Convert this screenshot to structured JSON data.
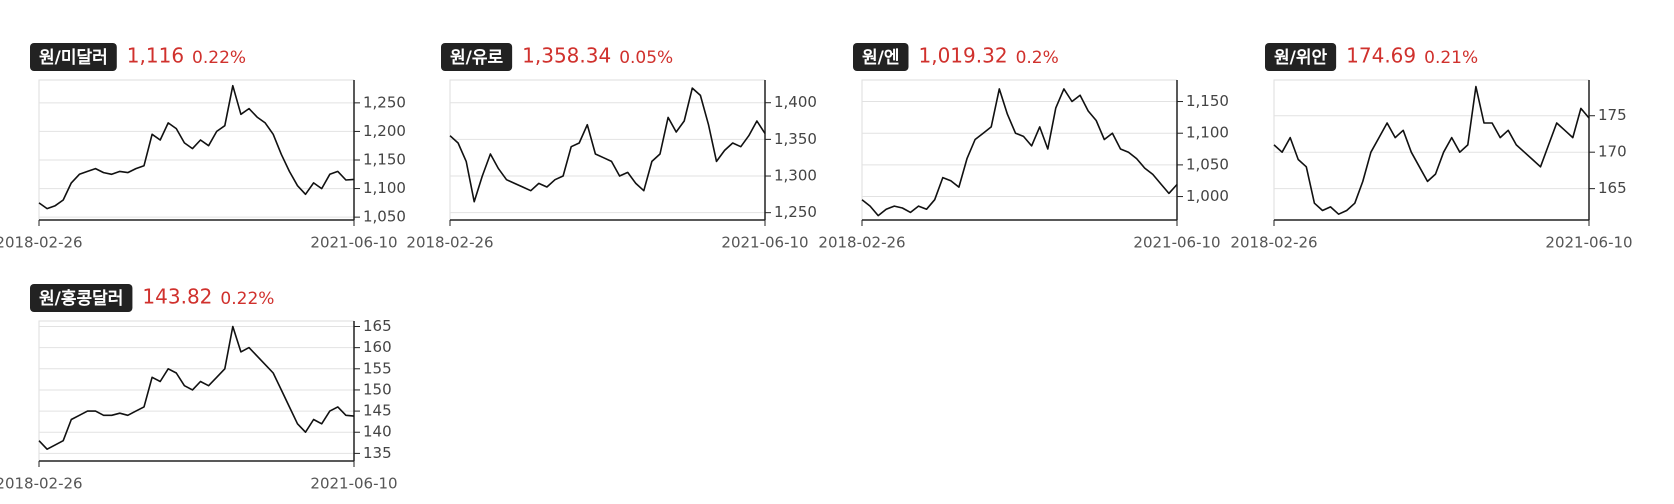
{
  "chart_data": [
    {
      "type": "line",
      "title": "원/미달러",
      "price": "1,116",
      "change": "0.22%",
      "color": "#111111",
      "grid": true,
      "categories": [
        "2018-02-26",
        null,
        null,
        null,
        null,
        null,
        null,
        null,
        null,
        null,
        null,
        null,
        null,
        null,
        null,
        null,
        null,
        null,
        null,
        null,
        null,
        null,
        null,
        null,
        null,
        null,
        null,
        null,
        null,
        null,
        null,
        null,
        null,
        null,
        null,
        null,
        null,
        null,
        null,
        "2021-06-10"
      ],
      "values": [
        1075,
        1065,
        1070,
        1080,
        1110,
        1125,
        1130,
        1135,
        1128,
        1125,
        1130,
        1128,
        1135,
        1140,
        1195,
        1185,
        1215,
        1205,
        1180,
        1170,
        1185,
        1175,
        1200,
        1210,
        1280,
        1230,
        1240,
        1225,
        1215,
        1195,
        1160,
        1130,
        1105,
        1090,
        1110,
        1100,
        1125,
        1130,
        1115,
        1116
      ],
      "ylim": [
        1045,
        1290
      ],
      "yticks": [
        {
          "value": 1050,
          "label": "1,050"
        },
        {
          "value": 1100,
          "label": "1,100"
        },
        {
          "value": 1150,
          "label": "1,150"
        },
        {
          "value": 1200,
          "label": "1,200"
        },
        {
          "value": 1250,
          "label": "1,250"
        }
      ]
    },
    {
      "type": "line",
      "title": "원/유로",
      "price": "1,358.34",
      "change": "0.05%",
      "color": "#111111",
      "grid": true,
      "categories": [
        "2018-02-26",
        null,
        null,
        null,
        null,
        null,
        null,
        null,
        null,
        null,
        null,
        null,
        null,
        null,
        null,
        null,
        null,
        null,
        null,
        null,
        null,
        null,
        null,
        null,
        null,
        null,
        null,
        null,
        null,
        null,
        null,
        null,
        null,
        null,
        null,
        null,
        null,
        null,
        null,
        "2021-06-10"
      ],
      "values": [
        1355,
        1345,
        1320,
        1265,
        1300,
        1330,
        1310,
        1295,
        1290,
        1285,
        1280,
        1290,
        1285,
        1295,
        1300,
        1340,
        1345,
        1370,
        1330,
        1325,
        1320,
        1300,
        1305,
        1290,
        1280,
        1320,
        1330,
        1380,
        1360,
        1375,
        1420,
        1410,
        1370,
        1320,
        1335,
        1345,
        1340,
        1355,
        1375,
        1358
      ],
      "ylim": [
        1240,
        1431
      ],
      "yticks": [
        {
          "value": 1250,
          "label": "1,250"
        },
        {
          "value": 1300,
          "label": "1,300"
        },
        {
          "value": 1350,
          "label": "1,350"
        },
        {
          "value": 1400,
          "label": "1,400"
        }
      ]
    },
    {
      "type": "line",
      "title": "원/엔",
      "price": "1,019.32",
      "change": "0.2%",
      "color": "#111111",
      "grid": true,
      "categories": [
        "2018-02-26",
        null,
        null,
        null,
        null,
        null,
        null,
        null,
        null,
        null,
        null,
        null,
        null,
        null,
        null,
        null,
        null,
        null,
        null,
        null,
        null,
        null,
        null,
        null,
        null,
        null,
        null,
        null,
        null,
        null,
        null,
        null,
        null,
        null,
        null,
        null,
        null,
        null,
        null,
        "2021-06-10"
      ],
      "values": [
        995,
        985,
        970,
        980,
        985,
        982,
        975,
        985,
        980,
        995,
        1030,
        1025,
        1015,
        1060,
        1090,
        1100,
        1110,
        1170,
        1130,
        1100,
        1095,
        1080,
        1110,
        1075,
        1140,
        1170,
        1150,
        1160,
        1135,
        1120,
        1090,
        1100,
        1075,
        1070,
        1060,
        1045,
        1035,
        1020,
        1005,
        1019
      ],
      "ylim": [
        963,
        1184
      ],
      "yticks": [
        {
          "value": 1000,
          "label": "1,000"
        },
        {
          "value": 1050,
          "label": "1,050"
        },
        {
          "value": 1100,
          "label": "1,100"
        },
        {
          "value": 1150,
          "label": "1,150"
        }
      ]
    },
    {
      "type": "line",
      "title": "원/위안",
      "price": "174.69",
      "change": "0.21%",
      "color": "#111111",
      "grid": true,
      "categories": [
        "2018-02-26",
        null,
        null,
        null,
        null,
        null,
        null,
        null,
        null,
        null,
        null,
        null,
        null,
        null,
        null,
        null,
        null,
        null,
        null,
        null,
        null,
        null,
        null,
        null,
        null,
        null,
        null,
        null,
        null,
        null,
        null,
        null,
        null,
        null,
        null,
        null,
        null,
        null,
        null,
        "2021-06-10"
      ],
      "values": [
        171,
        170,
        172,
        169,
        168,
        163,
        162,
        162.5,
        161.5,
        162,
        163,
        166,
        170,
        172,
        174,
        172,
        173,
        170,
        168,
        166,
        167,
        170,
        172,
        170,
        171,
        179,
        174,
        174,
        172,
        173,
        171,
        170,
        169,
        168,
        171,
        174,
        173,
        172,
        176,
        174.69
      ],
      "ylim": [
        160.7,
        179.9
      ],
      "yticks": [
        165,
        170,
        175
      ]
    },
    {
      "type": "line",
      "title": "원/홍콩달러",
      "price": "143.82",
      "change": "0.22%",
      "color": "#111111",
      "grid": true,
      "categories": [
        "2018-02-26",
        null,
        null,
        null,
        null,
        null,
        null,
        null,
        null,
        null,
        null,
        null,
        null,
        null,
        null,
        null,
        null,
        null,
        null,
        null,
        null,
        null,
        null,
        null,
        null,
        null,
        null,
        null,
        null,
        null,
        null,
        null,
        null,
        null,
        null,
        null,
        null,
        null,
        null,
        "2021-06-10"
      ],
      "values": [
        138,
        136,
        137,
        138,
        143,
        144,
        145,
        145,
        144,
        144,
        144.5,
        144,
        145,
        146,
        153,
        152,
        155,
        154,
        151,
        150,
        152,
        151,
        153,
        155,
        165,
        159,
        160,
        158,
        156,
        154,
        150,
        146,
        142,
        140,
        143,
        142,
        145,
        146,
        144,
        143.82
      ],
      "ylim": [
        133.2,
        166.3
      ],
      "yticks": [
        135,
        140,
        145,
        150,
        155,
        160,
        165
      ]
    }
  ]
}
